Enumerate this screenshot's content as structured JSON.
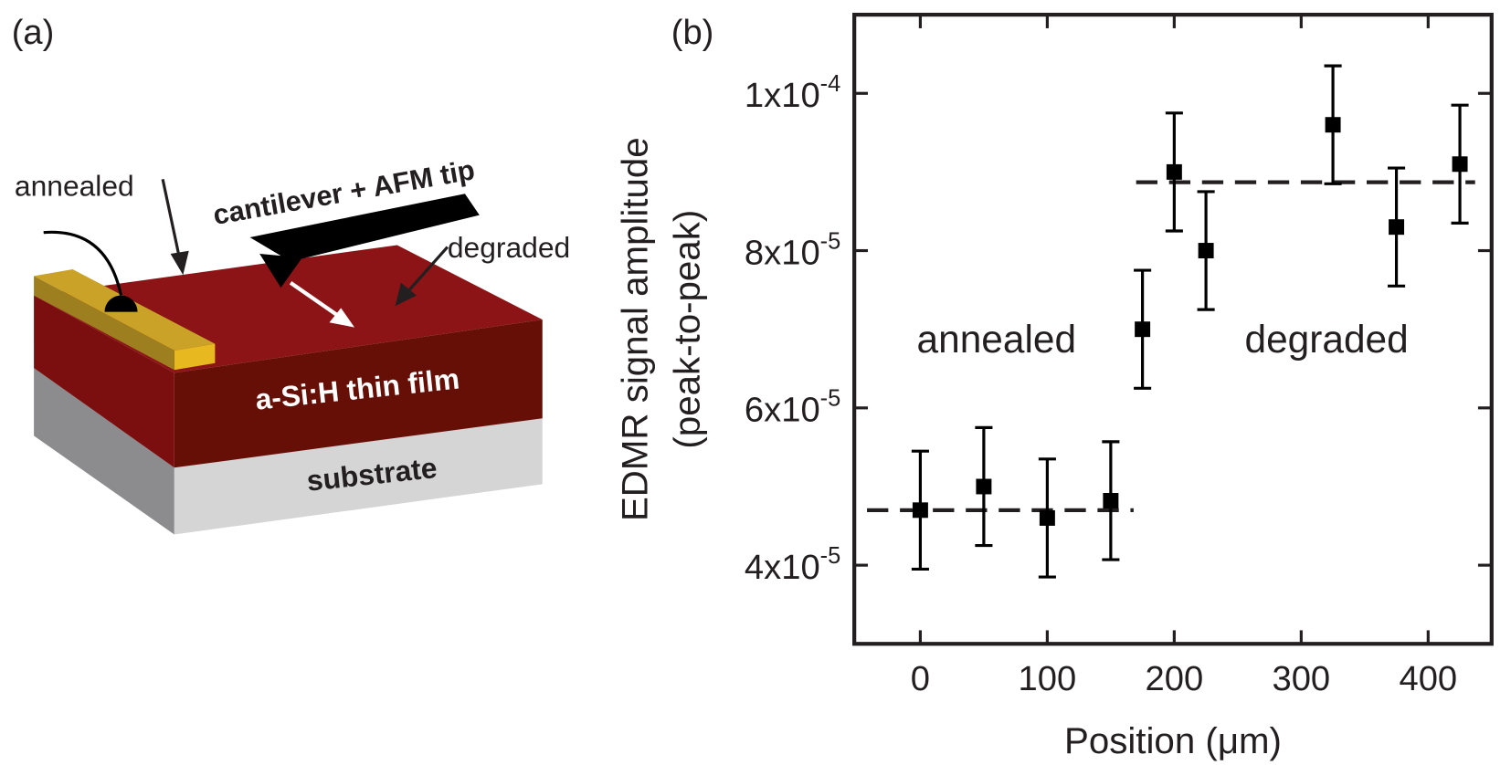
{
  "panel_a": {
    "label": "(a)",
    "annealed": "annealed",
    "cantilever": "cantilever + AFM tip",
    "degraded": "degraded",
    "film": "a-Si:H thin film",
    "substrate": "substrate"
  },
  "chart_data": {
    "type": "scatter",
    "panel_label": "(b)",
    "xlabel": "Position (μm)",
    "ylabel": [
      "EDMR signal amplitude",
      "(peak-to-peak)"
    ],
    "xlim": [
      -52,
      450
    ],
    "xticks": [
      0,
      100,
      200,
      300,
      400
    ],
    "ylim": [
      3e-05,
      0.00011
    ],
    "yticks": [
      {
        "value": 4e-05,
        "label": "4x10",
        "exponent": "-5"
      },
      {
        "value": 6e-05,
        "label": "6x10",
        "exponent": "-5"
      },
      {
        "value": 8e-05,
        "label": "8x10",
        "exponent": "-5"
      },
      {
        "value": 0.0001,
        "label": "1x10",
        "exponent": "-4"
      }
    ],
    "series": [
      {
        "color": "#000000",
        "x": [
          0,
          50,
          100,
          150,
          175,
          200,
          225,
          325,
          375,
          425
        ],
        "values": [
          4.7e-05,
          5e-05,
          4.6e-05,
          4.82e-05,
          7e-05,
          9e-05,
          8e-05,
          9.6e-05,
          8.3e-05,
          9.1e-05
        ],
        "errors": [
          7.5e-06,
          7.5e-06,
          7.5e-06,
          7.5e-06,
          7.5e-06,
          7.5e-06,
          7.5e-06,
          7.5e-06,
          7.5e-06,
          7.5e-06
        ]
      }
    ],
    "fits": [
      {
        "x": [
          -42,
          168
        ],
        "y": [
          4.7e-05,
          4.7e-05
        ]
      },
      {
        "x": [
          170,
          437
        ],
        "y": [
          8.87e-05,
          8.87e-05
        ]
      }
    ],
    "annotations": [
      {
        "text": "annealed",
        "x": 60,
        "y": 7e-05
      },
      {
        "text": "degraded",
        "x": 320,
        "y": 7e-05
      }
    ]
  }
}
